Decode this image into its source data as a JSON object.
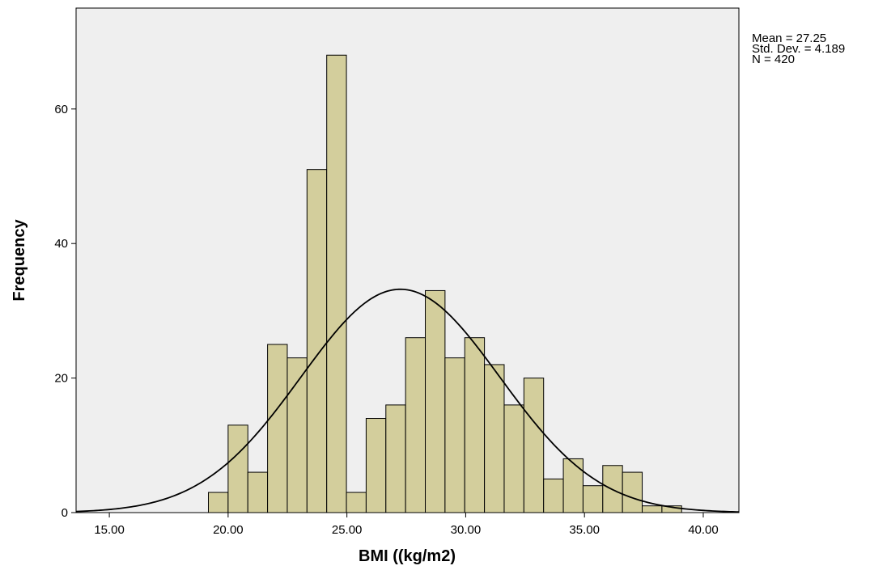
{
  "chart_data": {
    "type": "bar",
    "xlabel": "BMI ((kg/m2)",
    "ylabel": "Frequency",
    "xlim": [
      13.6,
      41.5
    ],
    "ylim": [
      0,
      75
    ],
    "x_ticks": [
      "15.00",
      "20.00",
      "25.00",
      "30.00",
      "35.00",
      "40.00"
    ],
    "y_ticks": [
      "0",
      "20",
      "40",
      "60"
    ],
    "bin_width": 0.83,
    "bin_edges": [
      19.17,
      20.0,
      20.83,
      21.66,
      22.49,
      23.32,
      24.15,
      24.98,
      25.81,
      26.64,
      27.47,
      28.3,
      29.13,
      29.96,
      30.79,
      31.62,
      32.45,
      33.28,
      34.11,
      34.94,
      35.77,
      36.6,
      37.43,
      38.26,
      39.09
    ],
    "values": [
      3,
      13,
      6,
      25,
      23,
      51,
      68,
      3,
      14,
      16,
      26,
      33,
      23,
      26,
      22,
      16,
      20,
      5,
      8,
      4,
      7,
      6,
      1,
      1
    ],
    "normal_curve": {
      "mean": 27.25,
      "std": 4.189,
      "n": 420
    },
    "background": "#efefef",
    "bar_color": "#d3ce9c",
    "bar_edge_color": "#000000",
    "grid": false
  },
  "stats": {
    "mean_label": "Mean = 27.25",
    "std_label": "Std. Dev. = 4.189",
    "n_label": "N = 420"
  }
}
